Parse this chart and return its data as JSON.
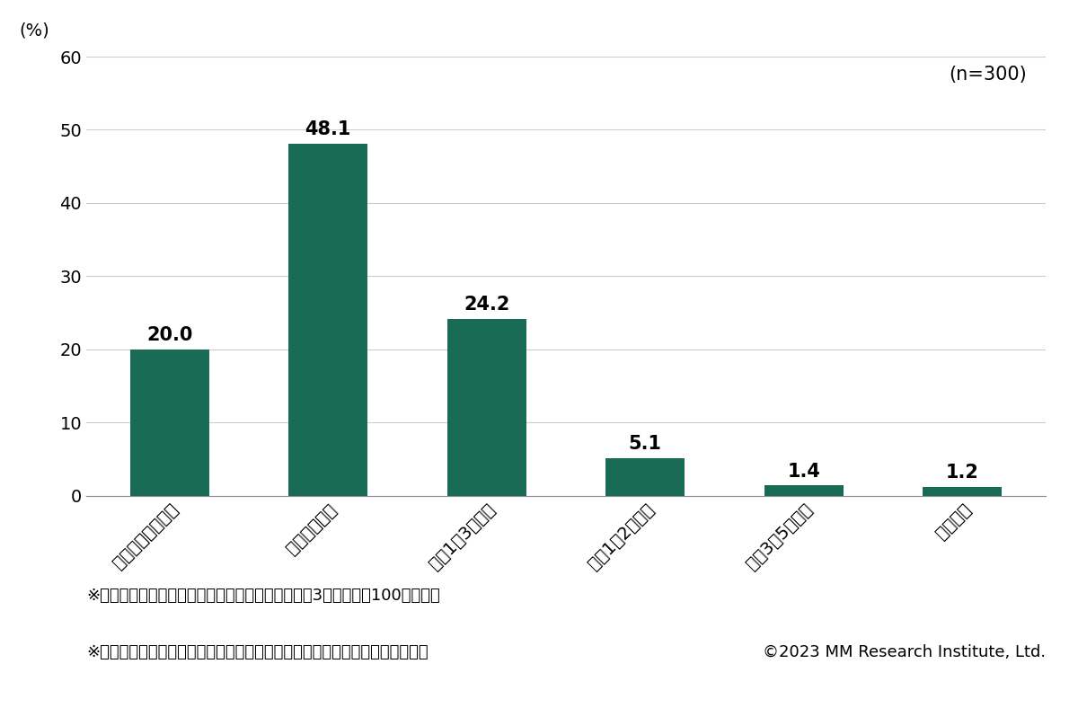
{
  "categories": [
    "一度利用したのみ",
    "年に数回程度",
    "月に1～3回程度",
    "週に1～2回程度",
    "週に3～5回程度",
    "ほぼ毎日"
  ],
  "values": [
    20.0,
    48.1,
    24.2,
    5.1,
    1.4,
    1.2
  ],
  "bar_color": "#1a6b55",
  "ylim": [
    0,
    60
  ],
  "yticks": [
    0,
    10,
    20,
    30,
    40,
    50,
    60
  ],
  "ylabel": "(%)",
  "n_label": "(n=300)",
  "footnote1": "※カーシェアを「利用したことがある」と回答した3都府県の各100人が対象",
  "footnote2": "※算出に際し、サンプル数を人口比率に合わせるウェイトバックを行っている",
  "copyright": "©2023 MM Research Institute, Ltd.",
  "background_color": "#ffffff",
  "label_fontsize": 14,
  "value_fontsize": 15,
  "tick_fontsize": 14,
  "footnote_fontsize": 13,
  "n_label_fontsize": 15
}
